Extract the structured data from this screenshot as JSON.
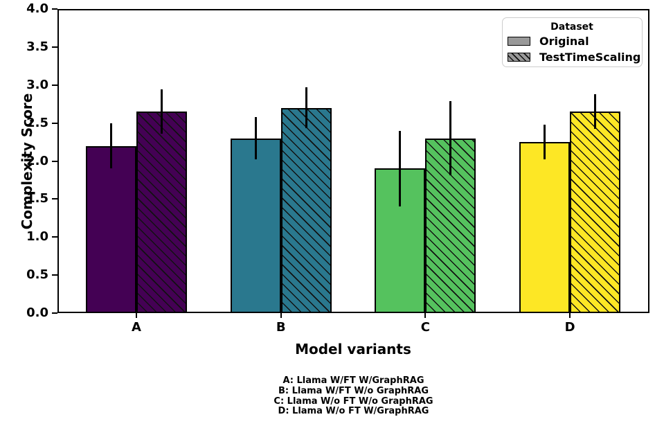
{
  "chart_data": {
    "type": "bar",
    "title": "",
    "xlabel": "Model variants",
    "ylabel": "Complexity Score",
    "categories": [
      "A",
      "B",
      "C",
      "D"
    ],
    "series": [
      {
        "name": "Original",
        "values": [
          2.2,
          2.3,
          1.9,
          2.25
        ],
        "errors": [
          0.3,
          0.28,
          0.5,
          0.23
        ],
        "hatch": "none"
      },
      {
        "name": "TestTimeScaling",
        "values": [
          2.65,
          2.7,
          2.3,
          2.65
        ],
        "errors": [
          0.29,
          0.27,
          0.49,
          0.23
        ],
        "hatch": "diagonal"
      }
    ],
    "bar_colors": [
      "#440154",
      "#2a788e",
      "#55c25e",
      "#fde725"
    ],
    "bar_edge_color": "#000000",
    "ylim": [
      0.0,
      4.0
    ],
    "yticks": [
      "0.0",
      "0.5",
      "1.0",
      "1.5",
      "2.0",
      "2.5",
      "3.0",
      "3.5",
      "4.0"
    ],
    "grid": false,
    "legend": {
      "title": "Dataset",
      "position": "upper right",
      "swatch_color": "#999999",
      "entries": [
        {
          "label": "Original",
          "swatch": "solid-gray"
        },
        {
          "label": "TestTimeScaling",
          "swatch": "hatched-gray"
        }
      ]
    },
    "caption_lines": [
      "A: Llama W/FT W/GraphRAG",
      "B: Llama W/FT W/o GraphRAG",
      "C: Llama W/o FT W/o GraphRAG",
      "D: Llama W/o FT W/GraphRAG"
    ]
  }
}
